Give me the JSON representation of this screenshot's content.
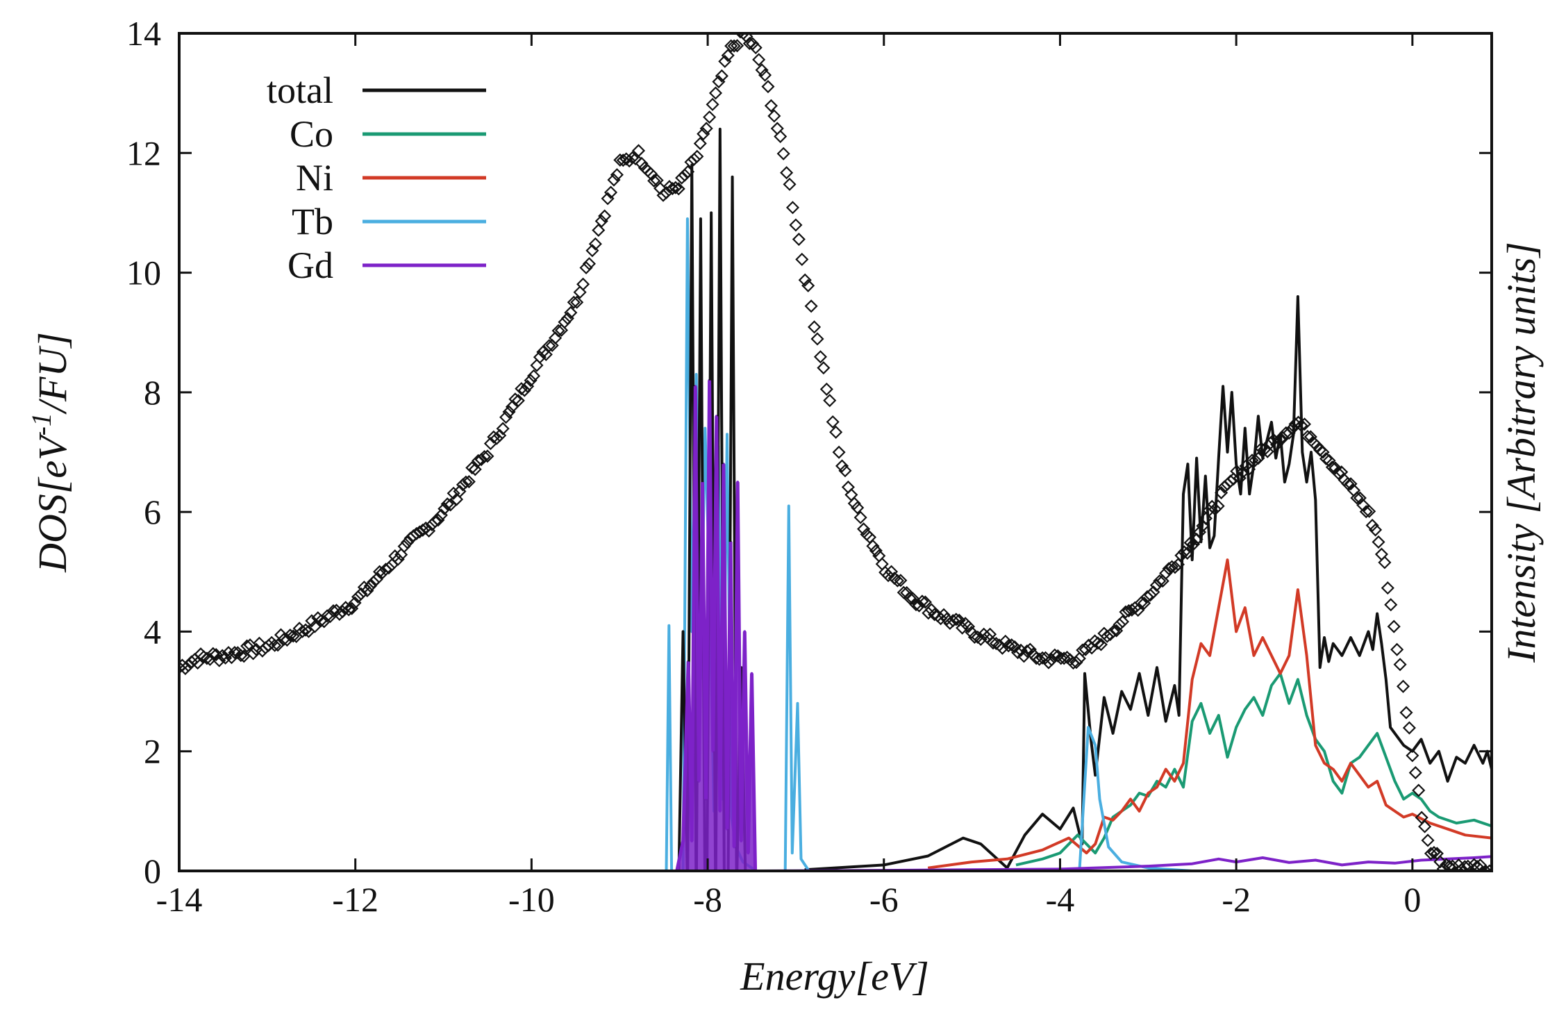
{
  "chart_data": {
    "type": "line",
    "title": "",
    "xlabel": "Energy[eV]",
    "ylabel": "DOS[eV-1/FU]",
    "ylabel_parts": {
      "pre": "DOS[eV",
      "sup": "-1",
      "post": "/FU]"
    },
    "y2label": "Intensity [Arbitrary units]",
    "xlim": [
      -14,
      0.9
    ],
    "ylim": [
      0,
      14
    ],
    "xticks": [
      -14,
      -12,
      -10,
      -8,
      -6,
      -4,
      -2,
      0
    ],
    "yticks": [
      0,
      2,
      4,
      6,
      8,
      10,
      12,
      14
    ],
    "xtick_labels": [
      "-14",
      "-12",
      "-10",
      "-8",
      "-6",
      "-4",
      "-2",
      "0"
    ],
    "ytick_labels": [
      "0",
      "2",
      "4",
      "6",
      "8",
      "10",
      "12",
      "14"
    ],
    "legend_position": "top-left",
    "series": [
      {
        "name": "total",
        "color": "#111111",
        "points": [
          [
            -6.9,
            0.02
          ],
          [
            -6.0,
            0.1
          ],
          [
            -5.5,
            0.25
          ],
          [
            -5.1,
            0.55
          ],
          [
            -4.9,
            0.45
          ],
          [
            -4.6,
            0.05
          ],
          [
            -4.4,
            0.6
          ],
          [
            -4.2,
            0.95
          ],
          [
            -4.0,
            0.7
          ],
          [
            -3.85,
            1.05
          ],
          [
            -3.75,
            0.45
          ],
          [
            -3.72,
            3.3
          ],
          [
            -3.65,
            2.2
          ],
          [
            -3.6,
            1.6
          ],
          [
            -3.5,
            2.9
          ],
          [
            -3.4,
            2.3
          ],
          [
            -3.3,
            3.0
          ],
          [
            -3.2,
            2.7
          ],
          [
            -3.1,
            3.3
          ],
          [
            -3.0,
            2.6
          ],
          [
            -2.9,
            3.4
          ],
          [
            -2.8,
            2.5
          ],
          [
            -2.7,
            3.1
          ],
          [
            -2.65,
            2.6
          ],
          [
            -2.6,
            6.3
          ],
          [
            -2.55,
            6.8
          ],
          [
            -2.5,
            5.2
          ],
          [
            -2.45,
            6.9
          ],
          [
            -2.4,
            5.5
          ],
          [
            -2.35,
            6.6
          ],
          [
            -2.3,
            5.4
          ],
          [
            -2.25,
            5.6
          ],
          [
            -2.2,
            6.9
          ],
          [
            -2.15,
            8.1
          ],
          [
            -2.1,
            7.0
          ],
          [
            -2.05,
            8.0
          ],
          [
            -2.0,
            6.8
          ],
          [
            -1.95,
            6.3
          ],
          [
            -1.9,
            7.4
          ],
          [
            -1.85,
            6.3
          ],
          [
            -1.8,
            6.8
          ],
          [
            -1.75,
            7.6
          ],
          [
            -1.7,
            6.9
          ],
          [
            -1.65,
            7.2
          ],
          [
            -1.6,
            7.5
          ],
          [
            -1.55,
            6.9
          ],
          [
            -1.5,
            7.3
          ],
          [
            -1.45,
            6.5
          ],
          [
            -1.4,
            6.8
          ],
          [
            -1.35,
            7.3
          ],
          [
            -1.3,
            9.6
          ],
          [
            -1.25,
            7.0
          ],
          [
            -1.2,
            6.5
          ],
          [
            -1.15,
            7.0
          ],
          [
            -1.1,
            6.2
          ],
          [
            -1.05,
            3.4
          ],
          [
            -1.0,
            3.9
          ],
          [
            -0.95,
            3.5
          ],
          [
            -0.9,
            3.8
          ],
          [
            -0.8,
            3.6
          ],
          [
            -0.7,
            3.9
          ],
          [
            -0.6,
            3.6
          ],
          [
            -0.5,
            4.0
          ],
          [
            -0.45,
            3.7
          ],
          [
            -0.4,
            4.3
          ],
          [
            -0.35,
            3.8
          ],
          [
            -0.3,
            3.2
          ],
          [
            -0.25,
            2.4
          ],
          [
            -0.2,
            2.3
          ],
          [
            -0.1,
            2.1
          ],
          [
            0.0,
            2.0
          ],
          [
            0.1,
            2.2
          ],
          [
            0.2,
            1.8
          ],
          [
            0.3,
            2.0
          ],
          [
            0.4,
            1.5
          ],
          [
            0.5,
            1.9
          ],
          [
            0.6,
            1.8
          ],
          [
            0.7,
            2.1
          ],
          [
            0.8,
            1.8
          ],
          [
            0.85,
            2.0
          ],
          [
            0.9,
            1.7
          ]
        ]
      },
      {
        "name": "Co",
        "color": "#1a9a73",
        "points": [
          [
            -4.5,
            0.1
          ],
          [
            -4.2,
            0.2
          ],
          [
            -4.0,
            0.3
          ],
          [
            -3.8,
            0.6
          ],
          [
            -3.6,
            0.3
          ],
          [
            -3.5,
            0.55
          ],
          [
            -3.4,
            0.9
          ],
          [
            -3.3,
            1.0
          ],
          [
            -3.2,
            1.1
          ],
          [
            -3.1,
            1.3
          ],
          [
            -3.0,
            1.25
          ],
          [
            -2.9,
            1.5
          ],
          [
            -2.8,
            1.4
          ],
          [
            -2.7,
            1.7
          ],
          [
            -2.6,
            1.4
          ],
          [
            -2.5,
            2.5
          ],
          [
            -2.4,
            2.8
          ],
          [
            -2.3,
            2.3
          ],
          [
            -2.2,
            2.6
          ],
          [
            -2.1,
            1.9
          ],
          [
            -2.0,
            2.4
          ],
          [
            -1.9,
            2.7
          ],
          [
            -1.8,
            2.9
          ],
          [
            -1.7,
            2.6
          ],
          [
            -1.6,
            3.1
          ],
          [
            -1.5,
            3.3
          ],
          [
            -1.4,
            2.8
          ],
          [
            -1.3,
            3.2
          ],
          [
            -1.2,
            2.6
          ],
          [
            -1.1,
            2.2
          ],
          [
            -1.0,
            2.0
          ],
          [
            -0.9,
            1.5
          ],
          [
            -0.8,
            1.3
          ],
          [
            -0.7,
            1.8
          ],
          [
            -0.6,
            1.9
          ],
          [
            -0.5,
            2.1
          ],
          [
            -0.4,
            2.3
          ],
          [
            -0.3,
            1.9
          ],
          [
            -0.2,
            1.5
          ],
          [
            -0.1,
            1.2
          ],
          [
            0.0,
            1.3
          ],
          [
            0.1,
            1.2
          ],
          [
            0.2,
            1.0
          ],
          [
            0.3,
            0.9
          ],
          [
            0.5,
            0.8
          ],
          [
            0.7,
            0.85
          ],
          [
            0.9,
            0.75
          ]
        ]
      },
      {
        "name": "Ni",
        "color": "#d23a26",
        "points": [
          [
            -5.5,
            0.05
          ],
          [
            -5.0,
            0.15
          ],
          [
            -4.6,
            0.2
          ],
          [
            -4.2,
            0.35
          ],
          [
            -3.9,
            0.55
          ],
          [
            -3.7,
            0.3
          ],
          [
            -3.6,
            0.45
          ],
          [
            -3.5,
            0.9
          ],
          [
            -3.4,
            0.85
          ],
          [
            -3.3,
            1.0
          ],
          [
            -3.2,
            1.2
          ],
          [
            -3.1,
            1.0
          ],
          [
            -3.0,
            1.3
          ],
          [
            -2.9,
            1.4
          ],
          [
            -2.8,
            1.7
          ],
          [
            -2.7,
            1.5
          ],
          [
            -2.6,
            1.8
          ],
          [
            -2.5,
            3.2
          ],
          [
            -2.4,
            3.8
          ],
          [
            -2.3,
            3.6
          ],
          [
            -2.2,
            4.4
          ],
          [
            -2.1,
            5.2
          ],
          [
            -2.0,
            4.0
          ],
          [
            -1.9,
            4.4
          ],
          [
            -1.8,
            3.6
          ],
          [
            -1.7,
            3.9
          ],
          [
            -1.6,
            3.6
          ],
          [
            -1.5,
            3.3
          ],
          [
            -1.4,
            3.6
          ],
          [
            -1.3,
            4.7
          ],
          [
            -1.2,
            3.6
          ],
          [
            -1.1,
            2.1
          ],
          [
            -1.0,
            1.8
          ],
          [
            -0.9,
            1.7
          ],
          [
            -0.8,
            1.5
          ],
          [
            -0.7,
            1.8
          ],
          [
            -0.6,
            1.6
          ],
          [
            -0.5,
            1.4
          ],
          [
            -0.4,
            1.5
          ],
          [
            -0.3,
            1.1
          ],
          [
            -0.2,
            1.0
          ],
          [
            -0.1,
            0.9
          ],
          [
            0.0,
            0.95
          ],
          [
            0.2,
            0.8
          ],
          [
            0.4,
            0.7
          ],
          [
            0.6,
            0.6
          ],
          [
            0.9,
            0.55
          ]
        ]
      },
      {
        "name": "Tb",
        "color": "#4aaee0",
        "points": [
          [
            -8.47,
            0.0
          ],
          [
            -8.44,
            4.1
          ],
          [
            -8.41,
            0.0
          ],
          [
            -8.28,
            0.0
          ],
          [
            -8.23,
            10.9
          ],
          [
            -8.18,
            4.0
          ],
          [
            -8.13,
            8.3
          ],
          [
            -8.08,
            3.2
          ],
          [
            -8.03,
            7.4
          ],
          [
            -7.98,
            4.8
          ],
          [
            -7.93,
            1.0
          ],
          [
            -7.88,
            7.1
          ],
          [
            -7.83,
            1.2
          ],
          [
            -7.78,
            7.3
          ],
          [
            -7.73,
            0.9
          ],
          [
            -7.68,
            0.4
          ],
          [
            -7.6,
            0.15
          ],
          [
            -7.5,
            0.05
          ],
          [
            -7.45,
            0.0
          ],
          [
            -7.12,
            0.0
          ],
          [
            -7.08,
            6.1
          ],
          [
            -7.04,
            0.3
          ],
          [
            -6.98,
            2.8
          ],
          [
            -6.94,
            0.2
          ],
          [
            -6.85,
            0.0
          ],
          [
            -3.78,
            0.0
          ],
          [
            -3.68,
            2.4
          ],
          [
            -3.6,
            2.1
          ],
          [
            -3.55,
            1.2
          ],
          [
            -3.45,
            0.4
          ],
          [
            -3.3,
            0.15
          ],
          [
            -3.0,
            0.05
          ],
          [
            -2.5,
            0.0
          ]
        ]
      },
      {
        "name": "Gd",
        "color": "#7d22c8",
        "points": [
          [
            -8.35,
            0.0
          ],
          [
            -8.28,
            0.5
          ],
          [
            -8.22,
            3.5
          ],
          [
            -8.18,
            0.5
          ],
          [
            -8.14,
            8.1
          ],
          [
            -8.1,
            1.5
          ],
          [
            -8.06,
            6.5
          ],
          [
            -8.02,
            1.2
          ],
          [
            -7.98,
            8.2
          ],
          [
            -7.94,
            2.0
          ],
          [
            -7.9,
            7.6
          ],
          [
            -7.86,
            1.0
          ],
          [
            -7.82,
            6.8
          ],
          [
            -7.78,
            0.7
          ],
          [
            -7.74,
            5.5
          ],
          [
            -7.7,
            0.4
          ],
          [
            -7.66,
            6.5
          ],
          [
            -7.62,
            0.5
          ],
          [
            -7.58,
            4.0
          ],
          [
            -7.54,
            0.3
          ],
          [
            -7.5,
            3.3
          ],
          [
            -7.46,
            0.0
          ],
          [
            -6.0,
            0.01
          ],
          [
            -4.0,
            0.03
          ],
          [
            -3.0,
            0.08
          ],
          [
            -2.5,
            0.12
          ],
          [
            -2.2,
            0.2
          ],
          [
            -2.0,
            0.15
          ],
          [
            -1.7,
            0.22
          ],
          [
            -1.4,
            0.14
          ],
          [
            -1.1,
            0.18
          ],
          [
            -0.8,
            0.1
          ],
          [
            -0.5,
            0.15
          ],
          [
            -0.2,
            0.13
          ],
          [
            0.1,
            0.18
          ],
          [
            0.4,
            0.2
          ],
          [
            0.7,
            0.22
          ],
          [
            0.9,
            0.24
          ]
        ]
      }
    ],
    "spikes": [
      {
        "name": "total",
        "color": "#111111",
        "peaks": [
          [
            -8.28,
            4.0
          ],
          [
            -8.18,
            11.8
          ],
          [
            -8.08,
            10.9
          ],
          [
            -7.96,
            11.0
          ],
          [
            -7.86,
            12.4
          ],
          [
            -7.72,
            11.6
          ],
          [
            -7.62,
            3.4
          ]
        ]
      }
    ],
    "experimental_series": {
      "name": "Intensity",
      "marker": "open-diamond",
      "color": "#111111",
      "points": [
        [
          -14.0,
          3.4
        ],
        [
          -13.8,
          3.55
        ],
        [
          -13.5,
          3.6
        ],
        [
          -13.0,
          3.75
        ],
        [
          -12.5,
          4.1
        ],
        [
          -12.0,
          4.5
        ],
        [
          -11.5,
          5.3
        ],
        [
          -11.0,
          6.0
        ],
        [
          -10.5,
          7.0
        ],
        [
          -10.0,
          8.3
        ],
        [
          -9.5,
          9.5
        ],
        [
          -9.2,
          10.9
        ],
        [
          -9.0,
          11.8
        ],
        [
          -8.8,
          12.0
        ],
        [
          -8.6,
          11.6
        ],
        [
          -8.5,
          11.3
        ],
        [
          -8.3,
          11.5
        ],
        [
          -8.1,
          12.0
        ],
        [
          -7.9,
          13.0
        ],
        [
          -7.75,
          13.7
        ],
        [
          -7.6,
          14.0
        ],
        [
          -7.45,
          13.7
        ],
        [
          -7.3,
          13.0
        ],
        [
          -7.1,
          11.7
        ],
        [
          -6.9,
          10.0
        ],
        [
          -6.7,
          8.5
        ],
        [
          -6.5,
          6.9
        ],
        [
          -6.3,
          6.0
        ],
        [
          -6.0,
          5.1
        ],
        [
          -5.7,
          4.6
        ],
        [
          -5.4,
          4.3
        ],
        [
          -5.0,
          4.0
        ],
        [
          -4.6,
          3.75
        ],
        [
          -4.2,
          3.55
        ],
        [
          -3.8,
          3.55
        ],
        [
          -3.5,
          3.9
        ],
        [
          -3.0,
          4.6
        ],
        [
          -2.5,
          5.5
        ],
        [
          -2.2,
          6.2
        ],
        [
          -2.0,
          6.6
        ],
        [
          -1.7,
          7.0
        ],
        [
          -1.4,
          7.4
        ],
        [
          -1.3,
          7.5
        ],
        [
          -1.1,
          7.2
        ],
        [
          -0.9,
          6.8
        ],
        [
          -0.7,
          6.4
        ],
        [
          -0.5,
          6.0
        ],
        [
          -0.4,
          5.6
        ],
        [
          -0.3,
          5.0
        ],
        [
          -0.2,
          4.0
        ],
        [
          -0.1,
          3.0
        ],
        [
          0.0,
          2.0
        ],
        [
          0.1,
          1.0
        ],
        [
          0.2,
          0.4
        ],
        [
          0.35,
          0.12
        ],
        [
          0.5,
          0.05
        ],
        [
          0.7,
          0.02
        ],
        [
          0.9,
          0.02
        ]
      ]
    }
  }
}
